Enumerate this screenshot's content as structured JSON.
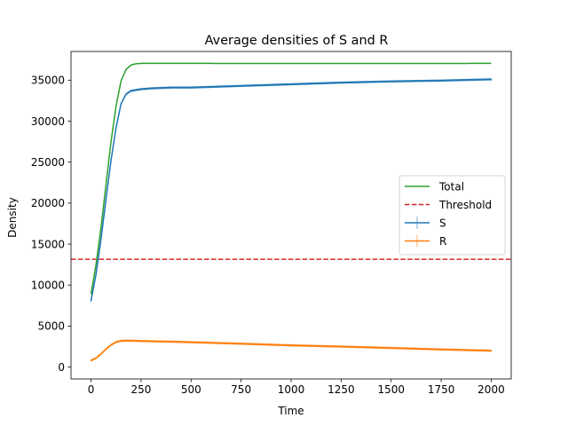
{
  "chart_data": {
    "type": "line",
    "title": "Average densities of S and R",
    "xlabel": "Time",
    "ylabel": "Density",
    "xlim": [
      -100,
      2100
    ],
    "ylim": [
      -1450,
      38500
    ],
    "xticks": [
      0,
      250,
      500,
      750,
      1000,
      1250,
      1500,
      1750,
      2000
    ],
    "yticks": [
      0,
      5000,
      10000,
      15000,
      20000,
      25000,
      30000,
      35000
    ],
    "grid": false,
    "legend_position": "center-right",
    "threshold": {
      "name": "Threshold",
      "value": 13150,
      "color": "#d62728"
    },
    "series": [
      {
        "name": "Total",
        "color": "#2ca02c",
        "error_bars": false,
        "x": [
          0,
          25,
          50,
          75,
          100,
          125,
          150,
          175,
          200,
          225,
          250,
          300,
          400,
          500,
          750,
          1000,
          1250,
          1500,
          1750,
          2000
        ],
        "y": [
          8900,
          12500,
          17000,
          22300,
          27500,
          31800,
          34900,
          36300,
          36850,
          37000,
          37050,
          37050,
          37050,
          37050,
          37040,
          37040,
          37040,
          37040,
          37040,
          37050
        ]
      },
      {
        "name": "S",
        "color": "#1f77b4",
        "error_bars": true,
        "x": [
          0,
          25,
          50,
          75,
          100,
          125,
          150,
          175,
          200,
          250,
          300,
          400,
          500,
          750,
          1000,
          1250,
          1500,
          1750,
          2000
        ],
        "y": [
          8100,
          11300,
          15600,
          20500,
          25200,
          29200,
          32100,
          33300,
          33700,
          33900,
          34000,
          34100,
          34100,
          34300,
          34500,
          34700,
          34850,
          34950,
          35100
        ]
      },
      {
        "name": "R",
        "color": "#ff7f0e",
        "error_bars": true,
        "x": [
          0,
          25,
          50,
          75,
          100,
          125,
          150,
          175,
          200,
          250,
          300,
          400,
          500,
          750,
          1000,
          1250,
          1500,
          1750,
          2000
        ],
        "y": [
          800,
          1100,
          1600,
          2200,
          2700,
          3050,
          3200,
          3220,
          3220,
          3180,
          3150,
          3100,
          3030,
          2850,
          2650,
          2500,
          2330,
          2150,
          2000
        ]
      }
    ]
  }
}
